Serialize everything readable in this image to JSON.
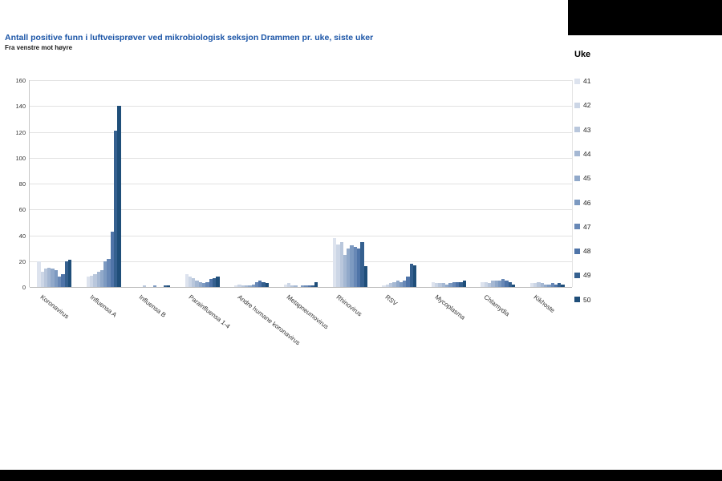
{
  "page": {
    "title": "Antall positive funn i luftveisprøver ved mikrobiologisk seksjon Drammen pr. uke, siste uker",
    "subtitle": "Fra venstre mot høyre"
  },
  "legend": {
    "title": "Uke",
    "weeks": [
      "41",
      "42",
      "43",
      "44",
      "45",
      "46",
      "47",
      "48",
      "49",
      "50"
    ],
    "colors": [
      "#dde3ee",
      "#ccd6e6",
      "#b9c7dc",
      "#a5b8d3",
      "#91a9ca",
      "#7d9ac1",
      "#6888b6",
      "#4f74a8",
      "#35608f",
      "#1f4e79"
    ]
  },
  "chart_data": {
    "type": "bar",
    "title": "Antall positive funn i luftveisprøver ved mikrobiologisk seksjon Drammen pr. uke, siste uker",
    "subtitle": "Fra venstre mot høyre",
    "xlabel": "",
    "ylabel": "",
    "ylim": [
      0,
      160
    ],
    "ytick_interval": 20,
    "grid": true,
    "legend_position": "right",
    "legend_title": "Uke",
    "categories": [
      "Koronavirus",
      "Influensa A",
      "Influensa B",
      "Parainfluensa 1-4",
      "Andre humane koronavirus",
      "Metapneumovirus",
      "Rhinovirus",
      "RSV",
      "Mycoplasma",
      "Chlamydia",
      "Kikhoste"
    ],
    "series": [
      {
        "name": "41",
        "values": [
          20,
          8,
          0,
          10,
          1,
          2,
          38,
          1,
          4,
          4,
          3
        ]
      },
      {
        "name": "42",
        "values": [
          12,
          9,
          0,
          8,
          2,
          3,
          33,
          2,
          3,
          4,
          3
        ]
      },
      {
        "name": "43",
        "values": [
          14,
          10,
          1,
          7,
          1,
          1,
          35,
          3,
          3,
          3,
          4
        ]
      },
      {
        "name": "44",
        "values": [
          15,
          12,
          0,
          5,
          1,
          1,
          25,
          4,
          3,
          5,
          3
        ]
      },
      {
        "name": "45",
        "values": [
          14,
          13,
          0,
          4,
          1,
          0,
          30,
          5,
          2,
          5,
          2
        ]
      },
      {
        "name": "46",
        "values": [
          13,
          20,
          1,
          3,
          2,
          1,
          32,
          4,
          3,
          5,
          2
        ]
      },
      {
        "name": "47",
        "values": [
          8,
          22,
          0,
          4,
          4,
          1,
          31,
          5,
          4,
          6,
          3
        ]
      },
      {
        "name": "48",
        "values": [
          10,
          43,
          0,
          6,
          5,
          1,
          30,
          8,
          4,
          5,
          2
        ]
      },
      {
        "name": "49",
        "values": [
          20,
          121,
          1,
          7,
          4,
          1,
          35,
          18,
          4,
          4,
          3
        ]
      },
      {
        "name": "50",
        "values": [
          21,
          140,
          1,
          8,
          3,
          4,
          16,
          17,
          5,
          2,
          2
        ]
      }
    ]
  }
}
